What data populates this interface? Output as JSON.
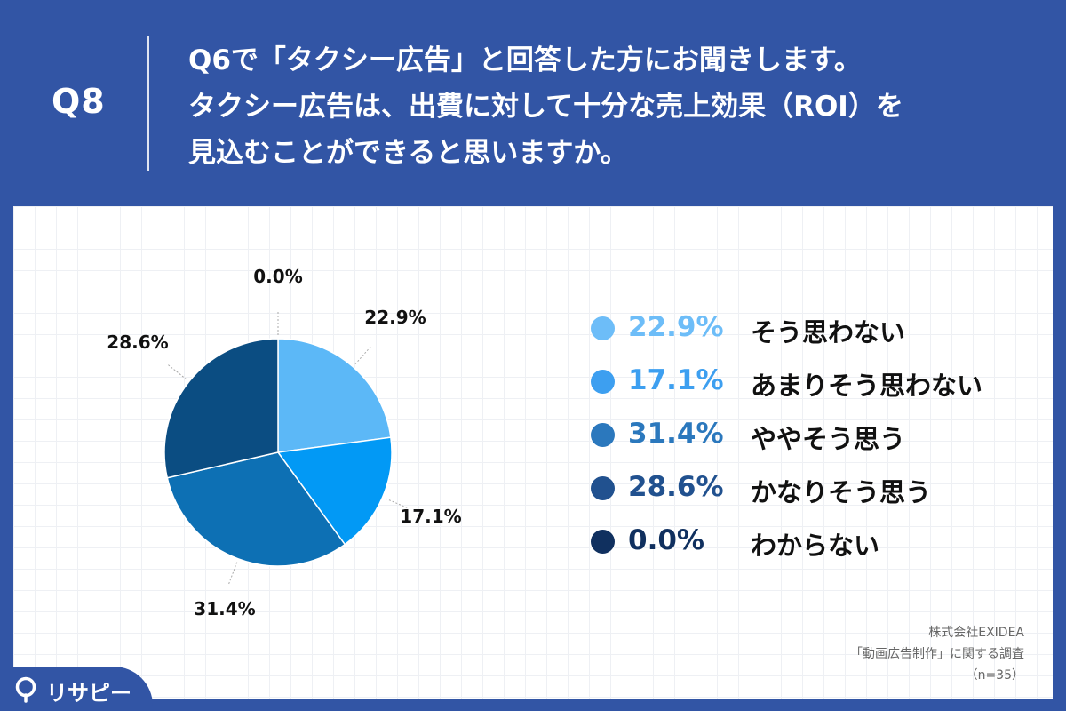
{
  "header": {
    "q_label": "Q8",
    "lines": [
      "Q6で「タクシー広告」と回答した方にお聞きします。",
      "タクシー広告は、出費に対して十分な売上効果（ROI）を",
      "見込むことができると思いますか。"
    ]
  },
  "chart_data": {
    "type": "pie",
    "start": "12 o'clock",
    "direction": "clockwise",
    "slices": [
      {
        "label": "そう思わない",
        "value": 22.9,
        "text": "22.9%",
        "color": "#5cb8f7"
      },
      {
        "label": "あまりそう思わない",
        "value": 17.1,
        "text": "17.1%",
        "color": "#0299f5"
      },
      {
        "label": "ややそう思う",
        "value": 31.4,
        "text": "31.4%",
        "color": "#0d70b4"
      },
      {
        "label": "かなりそう思う",
        "value": 28.6,
        "text": "28.6%",
        "color": "#0b4d82"
      },
      {
        "label": "わからない",
        "value": 0.0,
        "text": "0.0%",
        "color": "#0c2f66"
      }
    ]
  },
  "legend": [
    {
      "pct": "22.9%",
      "label": "そう思わない",
      "color": "#6dbdf8"
    },
    {
      "pct": "17.1%",
      "label": "あまりそう思わない",
      "color": "#3d9ff0"
    },
    {
      "pct": "31.4%",
      "label": "ややそう思う",
      "color": "#2b78bd"
    },
    {
      "pct": "28.6%",
      "label": "かなりそう思う",
      "color": "#21518f"
    },
    {
      "pct": "0.0%",
      "label": "わからない",
      "color": "#10305f"
    }
  ],
  "source": {
    "company": "株式会社EXIDEA",
    "survey": "「動画広告制作」に関する調査",
    "n": "（n=35）"
  },
  "logo": {
    "text": "リサピー",
    "icon": "location-pin-icon"
  }
}
